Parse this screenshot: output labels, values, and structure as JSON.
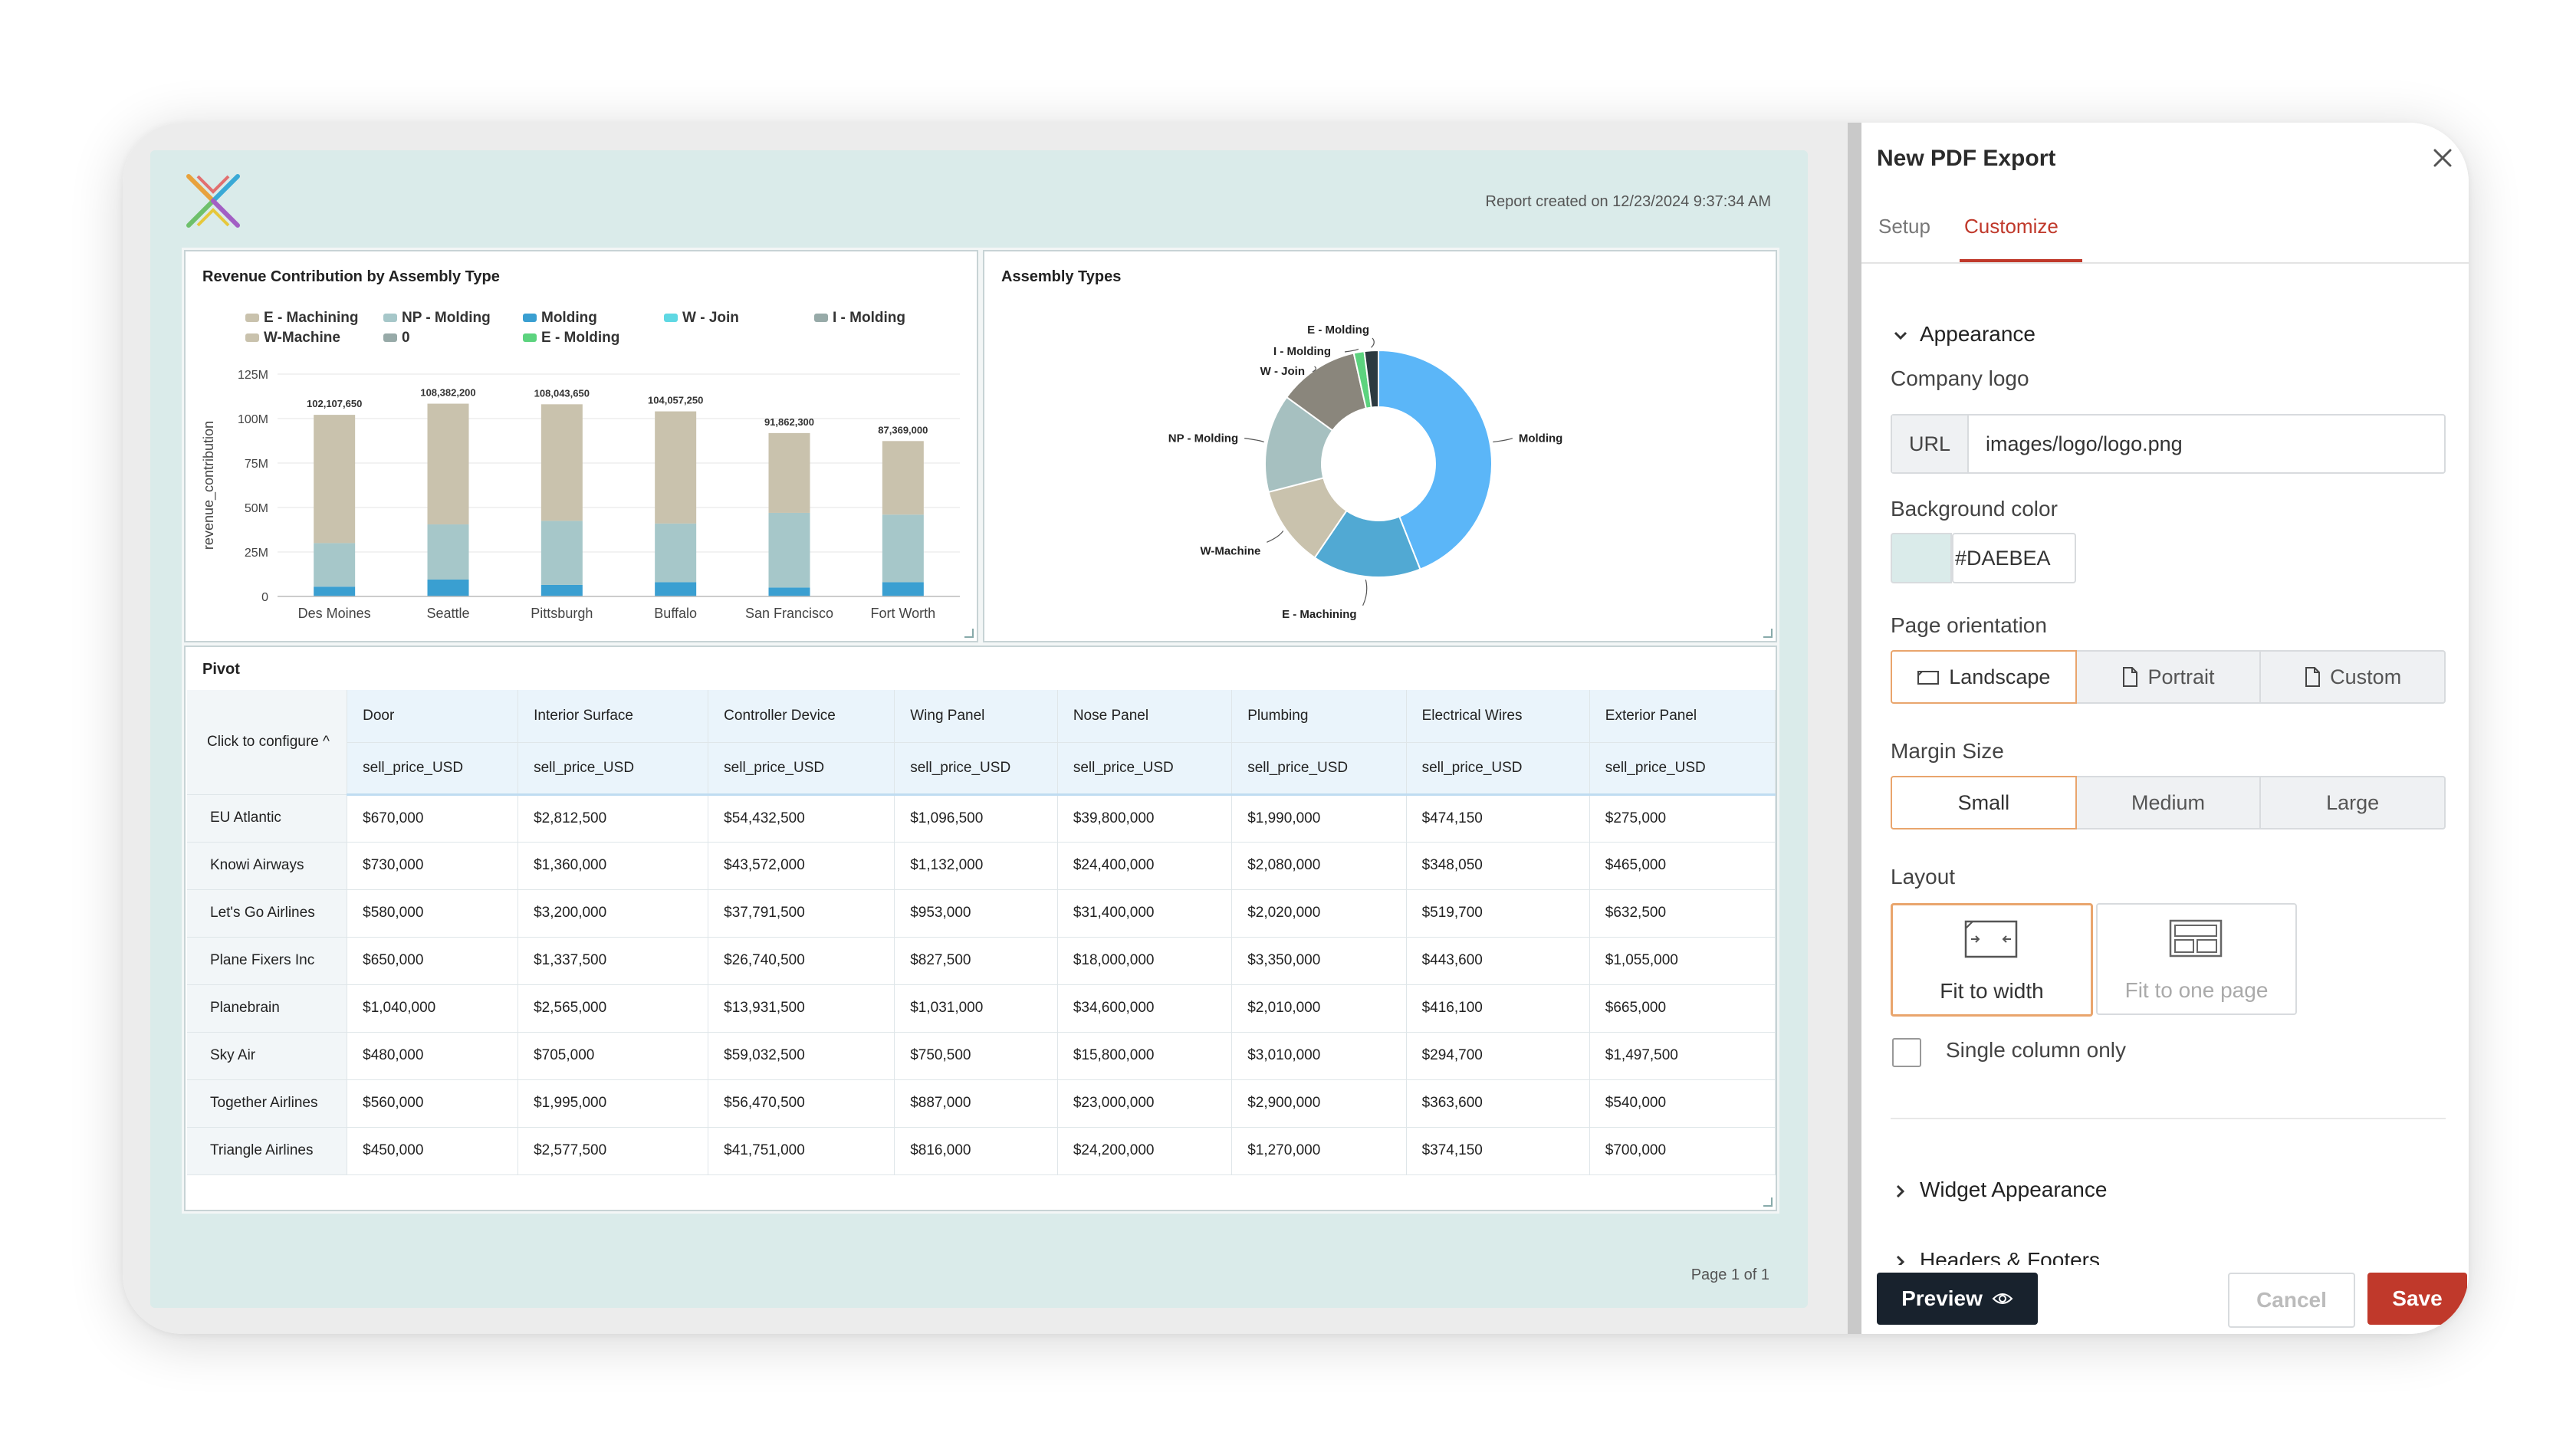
{
  "report": {
    "created": "Report created on 12/23/2024 9:37:34 AM",
    "page_number": "Page 1 of 1"
  },
  "bar_widget": {
    "title": "Revenue Contribution by Assembly Type",
    "legend": [
      {
        "label": "E - Machining",
        "color": "#c9c2ad"
      },
      {
        "label": "NP - Molding",
        "color": "#a6c7c9"
      },
      {
        "label": "Molding",
        "color": "#3a9fd1"
      },
      {
        "label": "W - Join",
        "color": "#5fd8e3"
      },
      {
        "label": "I - Molding",
        "color": "#97aaa8"
      },
      {
        "label": "W-Machine",
        "color": "#c9c2ad"
      },
      {
        "label": "0",
        "color": "#97aaa8"
      },
      {
        "label": "E - Molding",
        "color": "#5cd37e"
      }
    ]
  },
  "chart_data": [
    {
      "type": "bar",
      "title": "Revenue Contribution by Assembly Type",
      "ylabel": "revenue_contribution",
      "xlabel": "",
      "categories": [
        "Des Moines",
        "Seattle",
        "Pittsburgh",
        "Buffalo",
        "San Francisco",
        "Fort Worth"
      ],
      "totals_labels": [
        "102,107,650",
        "108,382,200",
        "108,043,650",
        "104,057,250",
        "91,862,300",
        "87,369,000"
      ],
      "totals": [
        102107650,
        108382200,
        108043650,
        104057250,
        91862300,
        87369000
      ],
      "ylim": [
        0,
        125000000
      ],
      "yticks": [
        {
          "v": 0,
          "label": "0"
        },
        {
          "v": 25000000,
          "label": "25M"
        },
        {
          "v": 50000000,
          "label": "50M"
        },
        {
          "v": 75000000,
          "label": "75M"
        },
        {
          "v": 100000000,
          "label": "100M"
        },
        {
          "v": 125000000,
          "label": "125M"
        }
      ],
      "grid": true,
      "series": [
        {
          "name": "Molding",
          "color": "#3a9fd1",
          "values": [
            5500000,
            9500000,
            6500000,
            8000000,
            5000000,
            8000000
          ]
        },
        {
          "name": "NP - Molding",
          "color": "#a6c7c9",
          "values": [
            24500000,
            31000000,
            36000000,
            33000000,
            42000000,
            38000000
          ]
        },
        {
          "name": "E - Machining",
          "color": "#c9c2ad",
          "values": [
            72107650,
            67882200,
            65543650,
            63057250,
            44862300,
            41369000
          ]
        }
      ]
    },
    {
      "type": "pie",
      "title": "Assembly Types",
      "slices": [
        {
          "label": "Molding",
          "value": 44,
          "color": "#5bb6f8"
        },
        {
          "label": "E - Machining",
          "value": 15.5,
          "color": "#51a9d3"
        },
        {
          "label": "W-Machine",
          "value": 11.5,
          "color": "#c9c2ad"
        },
        {
          "label": "NP - Molding",
          "value": 14,
          "color": "#a6c0c0"
        },
        {
          "label": "W - Join",
          "value": 11.5,
          "color": "#8a867c"
        },
        {
          "label": "I - Molding",
          "value": 1.5,
          "color": "#5cd37e"
        },
        {
          "label": "E - Molding",
          "value": 2,
          "color": "#2c3a40"
        }
      ]
    }
  ],
  "pivot": {
    "title": "Pivot",
    "configure_label": "Click to configure",
    "columns": [
      "Door",
      "Interior Surface",
      "Controller Device",
      "Wing Panel",
      "Nose Panel",
      "Plumbing",
      "Electrical Wires",
      "Exterior Panel"
    ],
    "measure": "sell_price_USD",
    "rows": [
      {
        "name": "EU Atlantic",
        "values": [
          "$670,000",
          "$2,812,500",
          "$54,432,500",
          "$1,096,500",
          "$39,800,000",
          "$1,990,000",
          "$474,150",
          "$275,000"
        ]
      },
      {
        "name": "Knowi Airways",
        "values": [
          "$730,000",
          "$1,360,000",
          "$43,572,000",
          "$1,132,000",
          "$24,400,000",
          "$2,080,000",
          "$348,050",
          "$465,000"
        ]
      },
      {
        "name": "Let's Go Airlines",
        "values": [
          "$580,000",
          "$3,200,000",
          "$37,791,500",
          "$953,000",
          "$31,400,000",
          "$2,020,000",
          "$519,700",
          "$632,500"
        ]
      },
      {
        "name": "Plane Fixers Inc",
        "values": [
          "$650,000",
          "$1,337,500",
          "$26,740,500",
          "$827,500",
          "$18,000,000",
          "$3,350,000",
          "$443,600",
          "$1,055,000"
        ]
      },
      {
        "name": "Planebrain",
        "values": [
          "$1,040,000",
          "$2,565,000",
          "$13,931,500",
          "$1,031,000",
          "$34,600,000",
          "$2,010,000",
          "$416,100",
          "$665,000"
        ]
      },
      {
        "name": "Sky Air",
        "values": [
          "$480,000",
          "$705,000",
          "$59,032,500",
          "$750,500",
          "$15,800,000",
          "$3,010,000",
          "$294,700",
          "$1,497,500"
        ]
      },
      {
        "name": "Together Airlines",
        "values": [
          "$560,000",
          "$1,995,000",
          "$56,470,500",
          "$887,000",
          "$23,000,000",
          "$2,900,000",
          "$363,600",
          "$540,000"
        ]
      },
      {
        "name": "Triangle Airlines",
        "values": [
          "$450,000",
          "$2,577,500",
          "$41,751,000",
          "$816,000",
          "$24,200,000",
          "$1,270,000",
          "$374,150",
          "$700,000"
        ]
      }
    ]
  },
  "panel": {
    "title": "New PDF Export",
    "tabs": [
      "Setup",
      "Customize"
    ],
    "active_tab": "Customize",
    "appearance": "Appearance",
    "company_logo_label": "Company logo",
    "url_prefix": "URL",
    "logo_url": "images/logo/logo.png",
    "bg_color_label": "Background color",
    "bg_color": "#DAEBEA",
    "orientation_label": "Page orientation",
    "orientations": [
      "Landscape",
      "Portrait",
      "Custom"
    ],
    "orientation_selected": "Landscape",
    "margin_label": "Margin Size",
    "margins": [
      "Small",
      "Medium",
      "Large"
    ],
    "margin_selected": "Small",
    "layout_label": "Layout",
    "layouts": [
      "Fit to width",
      "Fit to one page"
    ],
    "layout_selected": "Fit to width",
    "single_column": "Single column only",
    "widget_appearance": "Widget Appearance",
    "headers_footers": "Headers & Footers",
    "preview": "Preview",
    "cancel": "Cancel",
    "save": "Save",
    "accent": "#c0392b"
  }
}
